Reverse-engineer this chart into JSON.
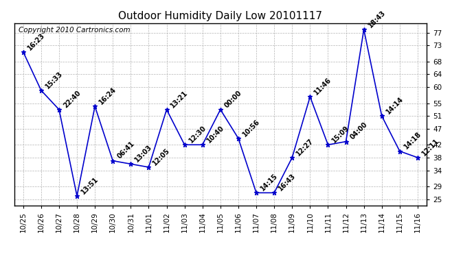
{
  "title": "Outdoor Humidity Daily Low 20101117",
  "copyright_text": "Copyright 2010 Cartronics.com",
  "background_color": "#ffffff",
  "line_color": "#0000cc",
  "marker_color": "#0000cc",
  "grid_color": "#aaaaaa",
  "dates": [
    "10/25",
    "10/26",
    "10/27",
    "10/28",
    "10/29",
    "10/30",
    "10/31",
    "11/01",
    "11/02",
    "11/03",
    "11/04",
    "11/05",
    "11/06",
    "11/07",
    "11/08",
    "11/09",
    "11/10",
    "11/11",
    "11/12",
    "11/13",
    "11/14",
    "11/15",
    "11/16"
  ],
  "values": [
    71,
    59,
    53,
    26,
    54,
    37,
    36,
    35,
    53,
    42,
    42,
    53,
    44,
    27,
    27,
    38,
    57,
    42,
    43,
    78,
    51,
    40,
    38
  ],
  "times": [
    "16:23",
    "15:33",
    "22:40",
    "13:51",
    "16:24",
    "06:41",
    "13:03",
    "12:05",
    "13:21",
    "12:30",
    "10:40",
    "00:00",
    "10:56",
    "14:15",
    "16:43",
    "12:27",
    "11:46",
    "15:09",
    "04:00",
    "18:43",
    "14:14",
    "14:18",
    "12:11"
  ],
  "yticks": [
    25,
    29,
    34,
    38,
    42,
    47,
    51,
    55,
    60,
    64,
    68,
    73,
    77
  ],
  "ylim": [
    23,
    80
  ],
  "title_fontsize": 11,
  "label_fontsize": 7,
  "tick_fontsize": 7.5,
  "copyright_fontsize": 7.5
}
